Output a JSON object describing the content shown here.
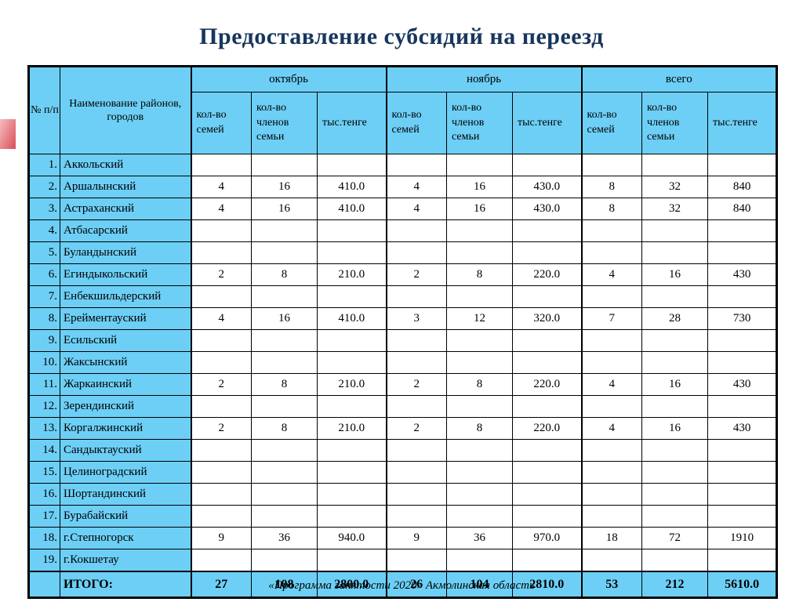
{
  "title": "Предоставление субсидий на переезд",
  "footer": "«Программа занятости 2020»  Акмолинская область",
  "colors": {
    "header_bg": "#6dcff6",
    "title_color": "#17365d",
    "border_color": "#000000"
  },
  "table": {
    "col_num_header": "№ п/п",
    "col_name_header": "Наименование районов, городов",
    "groups": [
      {
        "label": "октябрь"
      },
      {
        "label": "ноябрь"
      },
      {
        "label": "всего"
      }
    ],
    "subheaders": [
      "кол-во семей",
      "кол-во членов семьи",
      "тыс.тенге"
    ],
    "rows": [
      {
        "num": "1.",
        "name": "Аккольский",
        "values": [
          "",
          "",
          "",
          "",
          "",
          "",
          "",
          "",
          ""
        ]
      },
      {
        "num": "2.",
        "name": "Аршалынский",
        "values": [
          "4",
          "16",
          "410.0",
          "4",
          "16",
          "430.0",
          "8",
          "32",
          "840"
        ]
      },
      {
        "num": "3.",
        "name": "Астраханский",
        "values": [
          "4",
          "16",
          "410.0",
          "4",
          "16",
          "430.0",
          "8",
          "32",
          "840"
        ]
      },
      {
        "num": "4.",
        "name": "Атбасарский",
        "values": [
          "",
          "",
          "",
          "",
          "",
          "",
          "",
          "",
          ""
        ]
      },
      {
        "num": "5.",
        "name": "Буландынский",
        "values": [
          "",
          "",
          "",
          "",
          "",
          "",
          "",
          "",
          ""
        ]
      },
      {
        "num": "6.",
        "name": "Егиндыкольский",
        "values": [
          "2",
          "8",
          "210.0",
          "2",
          "8",
          "220.0",
          "4",
          "16",
          "430"
        ]
      },
      {
        "num": "7.",
        "name": "Енбекшильдерский",
        "values": [
          "",
          "",
          "",
          "",
          "",
          "",
          "",
          "",
          ""
        ]
      },
      {
        "num": "8.",
        "name": "Ерейментауский",
        "values": [
          "4",
          "16",
          "410.0",
          "3",
          "12",
          "320.0",
          "7",
          "28",
          "730"
        ]
      },
      {
        "num": "9.",
        "name": "Есильский",
        "values": [
          "",
          "",
          "",
          "",
          "",
          "",
          "",
          "",
          ""
        ]
      },
      {
        "num": "10.",
        "name": "Жаксынский",
        "values": [
          "",
          "",
          "",
          "",
          "",
          "",
          "",
          "",
          ""
        ]
      },
      {
        "num": "11.",
        "name": "Жаркаинский",
        "values": [
          "2",
          "8",
          "210.0",
          "2",
          "8",
          "220.0",
          "4",
          "16",
          "430"
        ]
      },
      {
        "num": "12.",
        "name": "Зерендинский",
        "values": [
          "",
          "",
          "",
          "",
          "",
          "",
          "",
          "",
          ""
        ]
      },
      {
        "num": "13.",
        "name": "Коргалжинский",
        "values": [
          "2",
          "8",
          "210.0",
          "2",
          "8",
          "220.0",
          "4",
          "16",
          "430"
        ]
      },
      {
        "num": "14.",
        "name": "Сандыктауский",
        "values": [
          "",
          "",
          "",
          "",
          "",
          "",
          "",
          "",
          ""
        ]
      },
      {
        "num": "15.",
        "name": "Целиноградский",
        "values": [
          "",
          "",
          "",
          "",
          "",
          "",
          "",
          "",
          ""
        ]
      },
      {
        "num": "16.",
        "name": "Шортандинский",
        "values": [
          "",
          "",
          "",
          "",
          "",
          "",
          "",
          "",
          ""
        ]
      },
      {
        "num": "17.",
        "name": "Бурабайский",
        "values": [
          "",
          "",
          "",
          "",
          "",
          "",
          "",
          "",
          ""
        ]
      },
      {
        "num": "18.",
        "name": "г.Степногорск",
        "values": [
          "9",
          "36",
          "940.0",
          "9",
          "36",
          "970.0",
          "18",
          "72",
          "1910"
        ]
      },
      {
        "num": "19.",
        "name": "г.Кокшетау",
        "values": [
          "",
          "",
          "",
          "",
          "",
          "",
          "",
          "",
          ""
        ]
      }
    ],
    "total": {
      "label": "ИТОГО:",
      "values": [
        "27",
        "108",
        "2800.0",
        "26",
        "104",
        "2810.0",
        "53",
        "212",
        "5610.0"
      ]
    }
  }
}
